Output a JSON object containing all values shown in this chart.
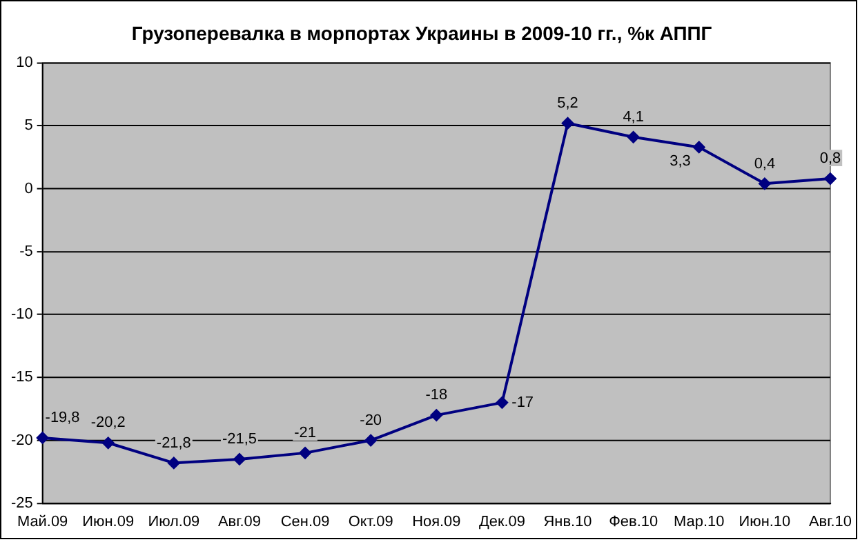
{
  "chart_data": {
    "type": "line",
    "title": "Грузоперевалка в морпортах Украины в 2009-10 гг., %к АППГ",
    "categories": [
      "Май.09",
      "Июн.09",
      "Июл.09",
      "Авг.09",
      "Сен.09",
      "Окт.09",
      "Ноя.09",
      "Дек.09",
      "Янв.10",
      "Фев.10",
      "Мар.10",
      "Июн.10",
      "Авг.10"
    ],
    "series": [
      {
        "color": "#000080",
        "values": [
          -19.8,
          -20.2,
          -21.8,
          -21.5,
          -21,
          -20,
          -18,
          -17,
          5.2,
          4.1,
          3.3,
          0.4,
          0.8
        ],
        "value_labels": [
          "-19,8",
          "-20,2",
          "-21,8",
          "-21,5",
          "-21",
          "-20",
          "-18",
          "-17",
          "5,2",
          "4,1",
          "3,3",
          "0,4",
          "0,8"
        ]
      }
    ],
    "ylim": [
      -25,
      10
    ],
    "yticks": [
      -25,
      -20,
      -15,
      -10,
      -5,
      0,
      5,
      10
    ],
    "grid": "y",
    "legend": false,
    "marker": "diamond",
    "line_style": "solid"
  }
}
